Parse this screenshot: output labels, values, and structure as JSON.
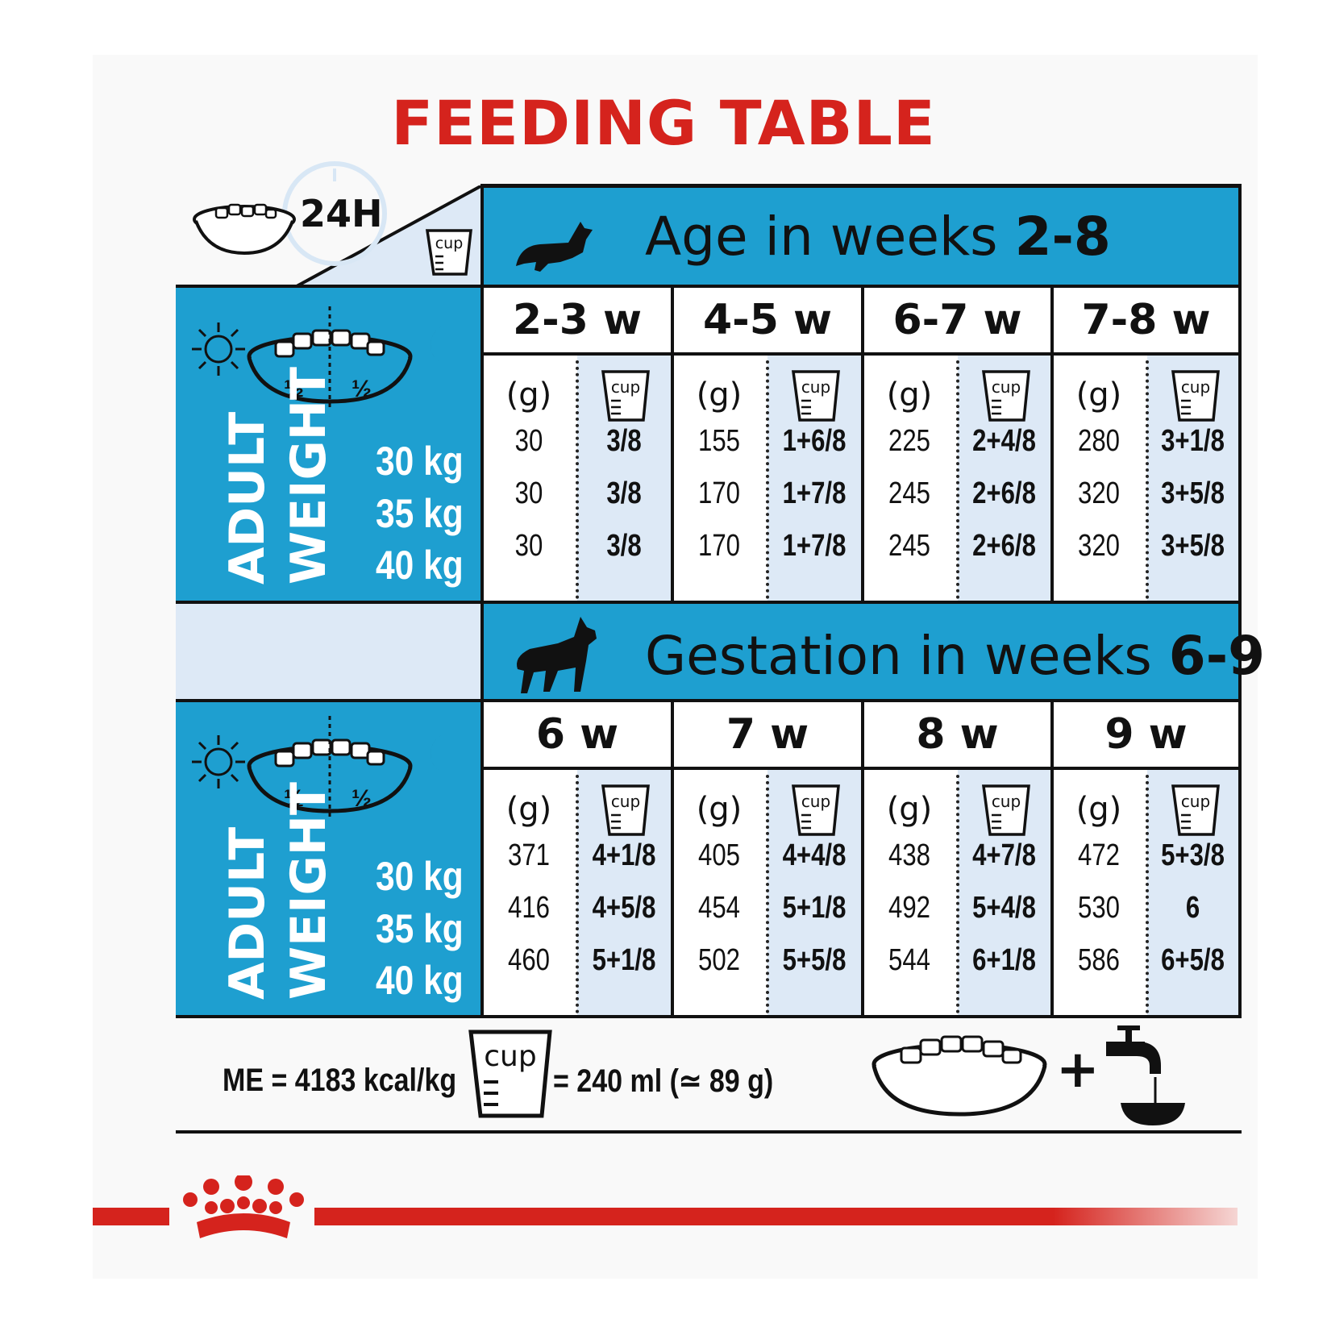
{
  "title": "FEEDING TABLE",
  "top_icon_label": "24H",
  "cup_label": "cup",
  "gram_label": "(g)",
  "half": "½",
  "weight_label_1": "ADULT",
  "weight_label_2": "WEIGHT",
  "weights": [
    "30 kg",
    "35 kg",
    "40 kg"
  ],
  "section1": {
    "title_prefix": "Age in weeks ",
    "title_bold": "2-8",
    "columns": [
      "2-3 w",
      "4-5 w",
      "6-7 w",
      "7-8 w"
    ],
    "rows": [
      [
        [
          "30",
          "3/8"
        ],
        [
          "155",
          "1+6/8"
        ],
        [
          "225",
          "2+4/8"
        ],
        [
          "280",
          "3+1/8"
        ]
      ],
      [
        [
          "30",
          "3/8"
        ],
        [
          "170",
          "1+7/8"
        ],
        [
          "245",
          "2+6/8"
        ],
        [
          "320",
          "3+5/8"
        ]
      ],
      [
        [
          "30",
          "3/8"
        ],
        [
          "170",
          "1+7/8"
        ],
        [
          "245",
          "2+6/8"
        ],
        [
          "320",
          "3+5/8"
        ]
      ]
    ]
  },
  "section2": {
    "title_prefix": "Gestation in weeks ",
    "title_bold": "6-9",
    "columns": [
      "6 w",
      "7 w",
      "8 w",
      "9 w"
    ],
    "rows": [
      [
        [
          "371",
          "4+1/8"
        ],
        [
          "405",
          "4+4/8"
        ],
        [
          "438",
          "4+7/8"
        ],
        [
          "472",
          "5+3/8"
        ]
      ],
      [
        [
          "416",
          "4+5/8"
        ],
        [
          "454",
          "5+1/8"
        ],
        [
          "492",
          "5+4/8"
        ],
        [
          "530",
          "6"
        ]
      ],
      [
        [
          "460",
          "5+1/8"
        ],
        [
          "502",
          "5+5/8"
        ],
        [
          "544",
          "6+1/8"
        ],
        [
          "586",
          "6+5/8"
        ]
      ]
    ]
  },
  "footer": {
    "energy": "ME = 4183 kcal/kg",
    "cup_equivalence": "= 240 ml (≃ 89 g)",
    "plus": "+"
  },
  "colors": {
    "brand_red": "#d5231d",
    "table_blue": "#1e9fd0",
    "light_blue": "#dde9f6"
  }
}
